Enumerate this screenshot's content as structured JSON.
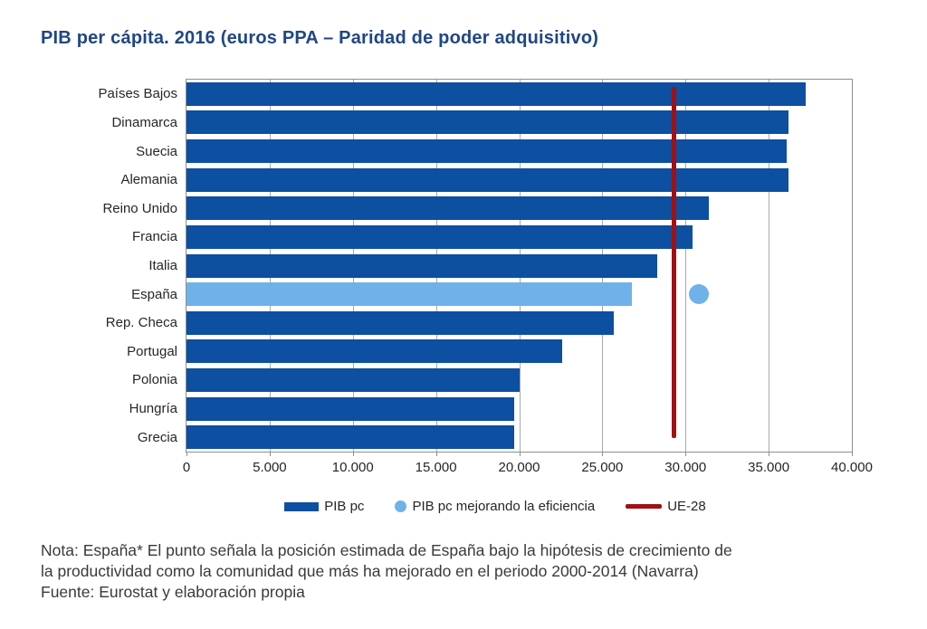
{
  "title": "PIB per cápita. 2016 (euros PPA – Paridad de poder adquisitivo)",
  "chart_data": {
    "type": "bar",
    "orientation": "horizontal",
    "title": "PIB per cápita. 2016 (euros PPA – Paridad de poder adquisitivo)",
    "categories": [
      "Países Bajos",
      "Dinamarca",
      "Suecia",
      "Alemania",
      "Reino Unido",
      "Francia",
      "Italia",
      "España",
      "Rep. Checa",
      "Portugal",
      "Polonia",
      "Hungría",
      "Grecia"
    ],
    "series": [
      {
        "name": "PIB pc",
        "values": [
          37200,
          36200,
          36100,
          36200,
          31400,
          30400,
          28300,
          26800,
          25700,
          22600,
          20000,
          19700,
          19700
        ]
      }
    ],
    "highlight_category": "España",
    "highlight_index": 7,
    "point_marker": {
      "series": "PIB pc mejorando la eficiencia",
      "category": "España",
      "value": 30800
    },
    "reference_line": {
      "name": "UE-28",
      "value": 29300,
      "orientation": "vertical"
    },
    "xlim": [
      0,
      40000
    ],
    "xtick_step": 5000,
    "xtick_labels": [
      "0",
      "5.000",
      "10.000",
      "15.000",
      "20.000",
      "25.000",
      "30.000",
      "35.000",
      "40.000"
    ],
    "grid": "vertical",
    "legend_position": "bottom"
  },
  "legend": {
    "items": [
      {
        "label": "PIB pc",
        "marker": "bar-swatch",
        "color": "#0d4fa0"
      },
      {
        "label": "PIB pc mejorando la eficiencia",
        "marker": "circle-swatch",
        "color": "#6fb2ea"
      },
      {
        "label": "UE-28",
        "marker": "line-swatch",
        "color": "#a21014"
      }
    ]
  },
  "note": {
    "line1": "Nota: España* El punto señala la posición estimada de España bajo la hipótesis de crecimiento de",
    "line2": "la productividad como la comunidad que más ha mejorado en el periodo 2000-2014 (Navarra)",
    "line3": "Fuente: Eurostat y elaboración propia"
  },
  "colors": {
    "bar": "#0d4fa0",
    "bar_highlight": "#6fb2ea",
    "reference_line": "#a21014",
    "dot": "#6fb2ea",
    "title": "#204686",
    "gridline": "#aaaaaa",
    "plot_border": "#8f8f8f",
    "text": "#262626",
    "note_text": "#3a3a3a"
  }
}
